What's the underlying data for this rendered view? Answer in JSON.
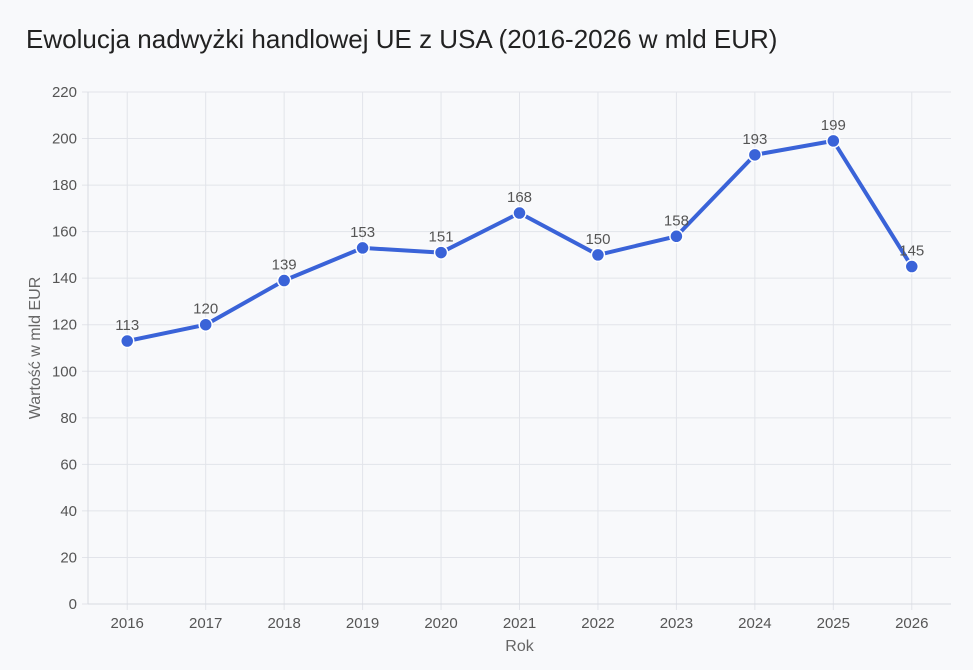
{
  "chart_data": {
    "type": "line",
    "title": "Ewolucja nadwyżki handlowej UE z USA (2016-2026 w mld EUR)",
    "xlabel": "Rok",
    "ylabel": "Wartość w mld EUR",
    "categories": [
      "2016",
      "2017",
      "2018",
      "2019",
      "2020",
      "2021",
      "2022",
      "2023",
      "2024",
      "2025",
      "2026"
    ],
    "series": [
      {
        "values": [
          113,
          120,
          139,
          153,
          151,
          168,
          150,
          158,
          193,
          199,
          145
        ]
      }
    ],
    "ylim": [
      0,
      220
    ],
    "yticks": [
      0,
      20,
      40,
      60,
      80,
      100,
      120,
      140,
      160,
      180,
      200,
      220
    ],
    "grid": true,
    "legend": "none",
    "line_color": "#3a63d8",
    "grid_color": "#e2e4ea"
  }
}
